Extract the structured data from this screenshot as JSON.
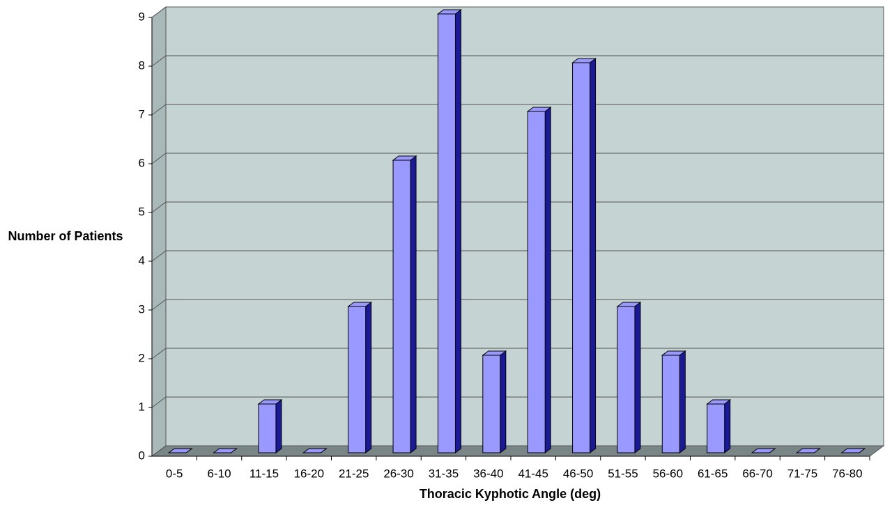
{
  "chart_data": {
    "type": "bar3d",
    "x_label": "Thoracic Kyphotic Angle (deg)",
    "y_label": "Number of Patients",
    "categories": [
      "0-5",
      "6-10",
      "11-15",
      "16-20",
      "21-25",
      "26-30",
      "31-35",
      "36-40",
      "41-45",
      "46-50",
      "51-55",
      "56-60",
      "61-65",
      "66-70",
      "71-75",
      "76-80"
    ],
    "values": [
      0,
      0,
      1,
      0,
      3,
      6,
      9,
      2,
      7,
      8,
      3,
      2,
      1,
      0,
      0,
      0
    ],
    "color": "#9999ff",
    "side_color": "#1a1a99",
    "ylim": [
      0,
      9
    ],
    "yticks": [
      0,
      1,
      2,
      3,
      4,
      5,
      6,
      7,
      8,
      9
    ],
    "grid": true
  }
}
